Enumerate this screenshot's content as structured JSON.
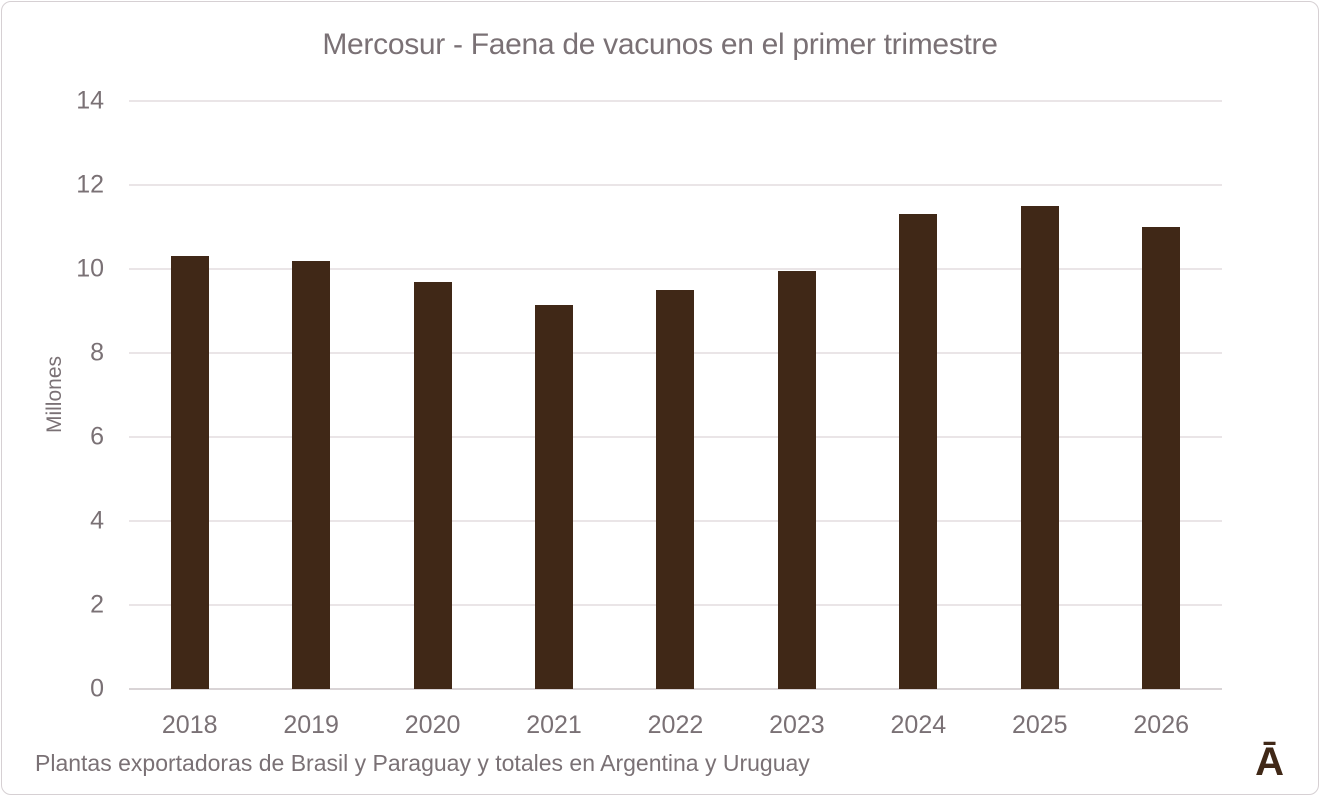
{
  "chart_data": {
    "type": "bar",
    "title": "Mercosur - Faena de vacunos en el primer trimestre",
    "ylabel": "Millones",
    "xlabel": "",
    "categories": [
      "2018",
      "2019",
      "2020",
      "2021",
      "2022",
      "2023",
      "2024",
      "2025",
      "2026"
    ],
    "values": [
      10.3,
      10.2,
      9.7,
      9.15,
      9.5,
      9.95,
      11.3,
      11.5,
      11.0
    ],
    "ylim": [
      0,
      14
    ],
    "yticks": [
      0,
      2,
      4,
      6,
      8,
      10,
      12,
      14
    ],
    "grid": "horizontal",
    "legend": "none"
  },
  "footer": {
    "note": "Plantas exportadoras de Brasil y Paraguay y totales en Argentina y Uruguay",
    "logo_glyph": "Ā"
  },
  "colors": {
    "bar": "#402817",
    "text": "#7a7175",
    "gridline": "#eae5e7",
    "baseline": "#d9d4d6",
    "border": "#d6d0d3",
    "background": "#ffffff",
    "logo": "#402817"
  }
}
